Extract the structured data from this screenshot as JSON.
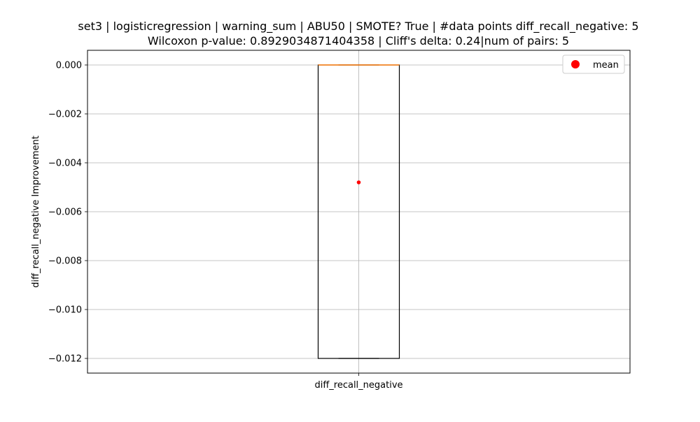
{
  "chart_data": {
    "type": "box",
    "title_line1": "set3 | logisticregression | warning_sum | ABU50 | SMOTE? True | #data points diff_recall_negative: 5",
    "title_line2": "Wilcoxon p-value: 0.8929034871404358 | Cliff's delta: 0.24|num of pairs: 5",
    "xlabel": "",
    "ylabel": "diff_recall_negative Improvement",
    "categories": [
      "diff_recall_negative"
    ],
    "box": {
      "whisker_low": -0.012,
      "q1": -0.012,
      "median": 0.0,
      "q3": 0.0,
      "whisker_high": 0.0,
      "mean": -0.0048
    },
    "ylim": [
      -0.0126,
      0.0006
    ],
    "yticks": [
      0.0,
      -0.002,
      -0.004,
      -0.006,
      -0.008,
      -0.01,
      -0.012
    ],
    "ytick_labels": [
      "0.000",
      "−0.002",
      "−0.004",
      "−0.006",
      "−0.008",
      "−0.010",
      "−0.012"
    ],
    "grid": true,
    "legend": {
      "position": "top-right",
      "entries": [
        {
          "label": "mean",
          "color": "#ff0000",
          "marker": "circle"
        }
      ]
    },
    "colors": {
      "box_edge": "#000000",
      "median": "#ff7f0e",
      "mean": "#ff0000",
      "grid": "#b0b0b0"
    }
  }
}
